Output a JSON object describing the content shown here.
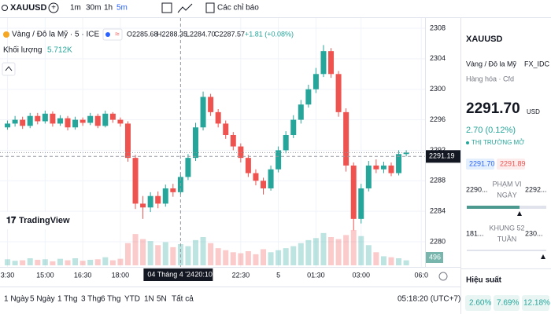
{
  "toolbar": {
    "symbol": "XAUUSD",
    "intervals": [
      "1m",
      "30m",
      "1h",
      "5m"
    ],
    "indicators": "Các chỉ báo"
  },
  "legend": {
    "name": "Vàng / Đô la Mỹ · 5 · ICE",
    "open": "O2285.68",
    "high": "H2288.35",
    "low": "L2284.70",
    "close": "C2287.57",
    "change": "+1.81 (+0.08%)",
    "volume_title": "Khối lượng",
    "volume_value": "5.712K"
  },
  "logo": "TradingView",
  "chart_data": {
    "type": "candlestick",
    "up_color": "#26a69a",
    "down_color": "#ef5350",
    "xlim": [
      -1,
      55.5
    ],
    "ylim": [
      2278,
      2309
    ],
    "yticks": [
      2280,
      2284,
      2288,
      2292,
      2296,
      2300,
      2304,
      2308
    ],
    "xticks": [
      {
        "value": 0,
        "label": "3:30"
      },
      {
        "value": 5,
        "label": "15:00"
      },
      {
        "value": 10,
        "label": "16:30"
      },
      {
        "value": 15,
        "label": "18:00"
      },
      {
        "value": 31,
        "label": "22:30"
      },
      {
        "value": 36,
        "label": "5"
      },
      {
        "value": 41,
        "label": "01:30"
      },
      {
        "value": 47,
        "label": "03:00"
      },
      {
        "value": 55,
        "label": "06:0"
      }
    ],
    "grid": true,
    "last_price": 2291.7,
    "crosshair": {
      "x": 23,
      "date_label": "04 Tháng 4 '24",
      "time_label": "20:10",
      "price": 2291.19
    },
    "candles": [
      [
        2295,
        2295.9,
        2294.7,
        2295.5
      ],
      [
        2295.5,
        2296.5,
        2295.1,
        2296
      ],
      [
        2296,
        2296.4,
        2294.8,
        2295.2
      ],
      [
        2295.2,
        2296.9,
        2294.9,
        2296.5
      ],
      [
        2296.5,
        2296.9,
        2295.4,
        2295.8
      ],
      [
        2295.8,
        2297.2,
        2295.5,
        2296.8
      ],
      [
        2296.8,
        2297.1,
        2295.1,
        2295.5
      ],
      [
        2295.5,
        2296.6,
        2295.2,
        2296.2
      ],
      [
        2296.2,
        2296.5,
        2294.6,
        2295
      ],
      [
        2295,
        2296.4,
        2294.7,
        2296
      ],
      [
        2296,
        2296.3,
        2295.2,
        2295.6
      ],
      [
        2295.6,
        2296.9,
        2295.3,
        2296.5
      ],
      [
        2296.5,
        2296.8,
        2294.9,
        2295.2
      ],
      [
        2295.2,
        2297.2,
        2295,
        2296.8
      ],
      [
        2296.8,
        2297,
        2295.6,
        2296
      ],
      [
        2296,
        2296.3,
        2295.1,
        2295.5
      ],
      [
        2295.5,
        2295.8,
        2290.5,
        2291
      ],
      [
        2291,
        2291.4,
        2284.3,
        2285
      ],
      [
        2285,
        2286,
        2283,
        2284.5
      ],
      [
        2284.5,
        2286.5,
        2283.9,
        2286
      ],
      [
        2286,
        2286.6,
        2284.4,
        2285
      ],
      [
        2285,
        2287.5,
        2284.6,
        2287
      ],
      [
        2287,
        2287.6,
        2285.9,
        2286.5
      ],
      [
        2286.5,
        2289,
        2286.2,
        2288.5
      ],
      [
        2288.5,
        2291.5,
        2288.1,
        2291
      ],
      [
        2291,
        2295.6,
        2290.6,
        2295
      ],
      [
        2295,
        2299.7,
        2294.6,
        2299
      ],
      [
        2299,
        2299.4,
        2296.5,
        2297
      ],
      [
        2297,
        2297.4,
        2295,
        2295.5
      ],
      [
        2295.5,
        2295.9,
        2293.5,
        2294
      ],
      [
        2294,
        2294.4,
        2292,
        2292.5
      ],
      [
        2292.5,
        2292.9,
        2290.4,
        2291
      ],
      [
        2291,
        2291.4,
        2288.5,
        2289
      ],
      [
        2289,
        2289.5,
        2287.4,
        2288
      ],
      [
        2288,
        2288.4,
        2286.2,
        2287
      ],
      [
        2287,
        2290,
        2286.7,
        2289.5
      ],
      [
        2289.5,
        2292.5,
        2289.1,
        2292
      ],
      [
        2292,
        2294.5,
        2291.6,
        2294
      ],
      [
        2294,
        2296.6,
        2293.6,
        2296
      ],
      [
        2296,
        2298.6,
        2295.5,
        2298
      ],
      [
        2298,
        2300.6,
        2297.6,
        2300
      ],
      [
        2300,
        2302.8,
        2299.5,
        2302
      ],
      [
        2302,
        2305.8,
        2301.6,
        2305
      ],
      [
        2305,
        2305.4,
        2301.5,
        2302
      ],
      [
        2302,
        2302.4,
        2296.4,
        2297
      ],
      [
        2297,
        2297.5,
        2289.2,
        2290
      ],
      [
        2290,
        2290.4,
        2281.5,
        2283
      ],
      [
        2283,
        2287.6,
        2282.4,
        2287
      ],
      [
        2287,
        2290.6,
        2286.6,
        2290
      ],
      [
        2290,
        2290.8,
        2289,
        2289.5
      ],
      [
        2289.5,
        2290.5,
        2289,
        2290
      ],
      [
        2290,
        2290.4,
        2288.6,
        2289
      ],
      [
        2289,
        2292,
        2288.7,
        2291.5
      ],
      [
        2291.5,
        2292,
        2291.2,
        2291.7
      ]
    ],
    "volumes": [
      600,
      450,
      500,
      700,
      550,
      600,
      400,
      650,
      500,
      700,
      450,
      550,
      600,
      800,
      500,
      650,
      2200,
      3100,
      2600,
      2400,
      2000,
      2300,
      1800,
      2100,
      1900,
      2500,
      2800,
      2200,
      1700,
      1500,
      1300,
      1200,
      1400,
      1100,
      1600,
      1300,
      1500,
      1700,
      1900,
      2200,
      2500,
      2700,
      3200,
      2800,
      2600,
      3000,
      3500,
      2900,
      2000,
      1300,
      900,
      800,
      700,
      496
    ]
  },
  "panel": {
    "symbol": "XAUUSD",
    "name": "Vàng / Đô la Mỹ",
    "exchange": "FX_IDC",
    "category": "Hàng hóa · Cfd",
    "price": "2291.70",
    "currency": "USD",
    "change": "2.70 (0.12%)",
    "status": "THỊ TRƯỜNG MỞ",
    "bid": "2291.70",
    "ask": "2291.89",
    "day_low": "2290...",
    "day_range": [
      "PHẠM VI",
      "NGÀY"
    ],
    "day_high": "2292...",
    "year_low": "181...",
    "year_range": [
      "KHUNG 52",
      "TUẦN"
    ],
    "year_high": "230...",
    "performance": "Hiệu suất",
    "perf_values": [
      "2.60%",
      "7.69%",
      "12.18%"
    ]
  },
  "footer": {
    "ranges": [
      "1 Ngày",
      "5 Ngày",
      "1 Thg",
      "3 Thg",
      "6 Thg",
      "YTD",
      "1N",
      "5N",
      "Tất cả"
    ],
    "clock": "05:18:20 (UTC+7)"
  }
}
